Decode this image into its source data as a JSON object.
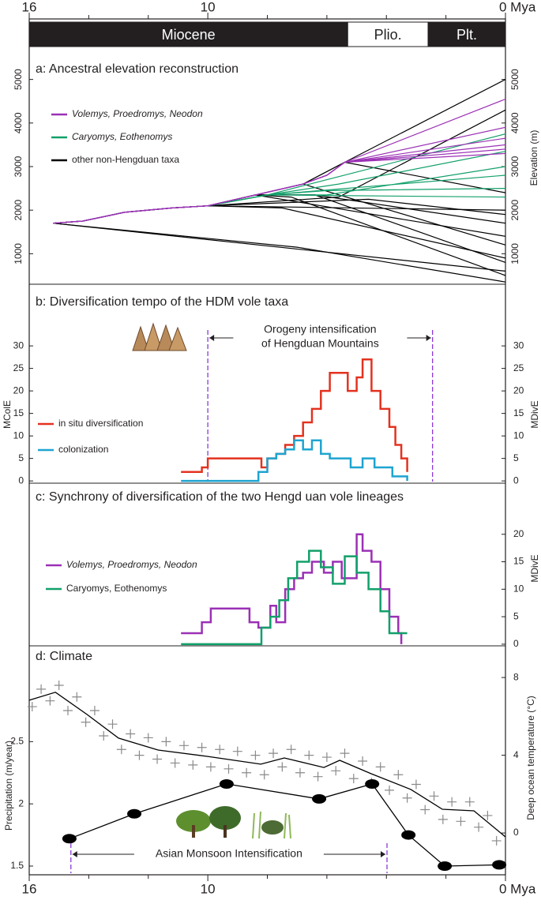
{
  "chart_data": [
    {
      "type": "timeline",
      "xlim": [
        16,
        0
      ],
      "xticks": [
        16,
        10,
        {
          "value": 0,
          "label": "0 Mya"
        }
      ],
      "xminorticks": [
        14,
        12,
        8,
        6,
        4,
        2
      ],
      "epochs": [
        {
          "name": "Miocene",
          "start": 16,
          "end": 5.3,
          "color": "#231f20",
          "text_color": "#ffffff"
        },
        {
          "name": "Plio.",
          "start": 5.3,
          "end": 2.6,
          "color": "#ffffff",
          "text_color": "#231f20"
        },
        {
          "name": "Plt.",
          "start": 2.6,
          "end": 0,
          "color": "#231f20",
          "text_color": "#ffffff"
        }
      ]
    },
    {
      "type": "line",
      "title": "a: Ancestral elevation reconstruction",
      "y2label": "Elevation (m)",
      "xlim": [
        16,
        0
      ],
      "ylim": [
        300,
        5700
      ],
      "yticks": [
        1000,
        2000,
        3000,
        4000,
        5000
      ],
      "series": [
        {
          "name": "Volemys, Proedromys, Neodon",
          "color": "#9b30b5",
          "italic": true
        },
        {
          "name": "Caryomys, Eothenomys",
          "color": "#12a06a",
          "italic": true
        },
        {
          "name": "other non-Hengduan taxa",
          "color": "#000000",
          "italic": false
        }
      ],
      "lines": [
        {
          "series": 2,
          "x": [
            15.2,
            0
          ],
          "values": [
            1700,
            600
          ]
        },
        {
          "series": 2,
          "x": [
            15.2,
            7,
            0
          ],
          "values": [
            1700,
            1150,
            350
          ]
        },
        {
          "series": 2,
          "x": [
            15.2,
            14.2,
            12.8,
            11.2,
            10,
            0
          ],
          "values": [
            1700,
            1750,
            1950,
            2050,
            2100,
            2000
          ]
        },
        {
          "series": 2,
          "x": [
            15.2,
            14.2,
            12.8,
            11.2,
            10,
            8.4,
            0
          ],
          "values": [
            1700,
            1750,
            1950,
            2050,
            2100,
            2350,
            1400
          ]
        },
        {
          "series": 2,
          "x": [
            15.2,
            14.2,
            12.8,
            11.2,
            10,
            8.4,
            6.4,
            0
          ],
          "values": [
            1700,
            1750,
            1950,
            2050,
            2100,
            2350,
            2350,
            800
          ]
        },
        {
          "series": 2,
          "x": [
            15.2,
            14.2,
            12.8,
            11.2,
            10,
            8.4,
            6.4,
            0
          ],
          "values": [
            1700,
            1750,
            1950,
            2050,
            2100,
            2350,
            2350,
            1700
          ]
        },
        {
          "series": 2,
          "x": [
            15.2,
            14.2,
            12.8,
            11.2,
            10,
            8.4,
            6.8,
            5.4,
            0
          ],
          "values": [
            1700,
            1750,
            1950,
            2050,
            2100,
            2350,
            2600,
            3100,
            5000
          ]
        },
        {
          "series": 2,
          "x": [
            15.2,
            14.2,
            12.8,
            11.2,
            10,
            8.4,
            6.8,
            5.4,
            0
          ],
          "values": [
            1700,
            1750,
            1950,
            2050,
            2100,
            2350,
            2600,
            3100,
            2400
          ]
        },
        {
          "series": 2,
          "x": [
            15.2,
            14.2,
            12.8,
            11.2,
            10,
            8.4,
            6.8,
            0
          ],
          "values": [
            1700,
            1750,
            1950,
            2050,
            2100,
            2350,
            2600,
            1200
          ]
        },
        {
          "series": 2,
          "x": [
            15.2,
            14.2,
            12.8,
            11.2,
            10,
            8.4,
            7.2,
            0
          ],
          "values": [
            1700,
            1750,
            1950,
            2050,
            2100,
            2350,
            2300,
            500
          ]
        },
        {
          "series": 2,
          "x": [
            15.2,
            14.2,
            12.8,
            11.2,
            10,
            7.5,
            0
          ],
          "values": [
            1700,
            1750,
            1950,
            2050,
            2100,
            2050,
            900
          ]
        },
        {
          "series": 2,
          "x": [
            15.2,
            14.2,
            12.8,
            11.2,
            10,
            5.6,
            0
          ],
          "values": [
            1700,
            1750,
            1950,
            2050,
            2100,
            2300,
            4300
          ]
        },
        {
          "series": 2,
          "x": [
            15.2,
            14.2,
            12.8,
            11.2,
            10,
            4.6,
            0
          ],
          "values": [
            1700,
            1750,
            1950,
            2050,
            2100,
            2250,
            1900
          ]
        },
        {
          "series": 0,
          "x": [
            15.2,
            14.2,
            12.8,
            11.2,
            10,
            8.4,
            6.8,
            6.0,
            5.4,
            0
          ],
          "values": [
            1700,
            1750,
            1950,
            2050,
            2100,
            2350,
            2600,
            2800,
            3100,
            4550
          ]
        },
        {
          "series": 0,
          "x": [
            15.2,
            14.2,
            12.8,
            11.2,
            10,
            8.4,
            6.8,
            6.0,
            5.4,
            0
          ],
          "values": [
            1700,
            1750,
            1950,
            2050,
            2100,
            2350,
            2600,
            2800,
            3100,
            3900
          ]
        },
        {
          "series": 0,
          "x": [
            15.2,
            14.2,
            12.8,
            11.2,
            10,
            8.4,
            6.8,
            6.0,
            5.4,
            0
          ],
          "values": [
            1700,
            1750,
            1950,
            2050,
            2100,
            2350,
            2600,
            2800,
            3100,
            3650
          ]
        },
        {
          "series": 0,
          "x": [
            15.2,
            14.2,
            12.8,
            11.2,
            10,
            8.4,
            6.8,
            6.0,
            5.4,
            0
          ],
          "values": [
            1700,
            1750,
            1950,
            2050,
            2100,
            2350,
            2600,
            2800,
            3100,
            3500
          ]
        },
        {
          "series": 0,
          "x": [
            15.2,
            14.2,
            12.8,
            11.2,
            10,
            8.4,
            6.8,
            6.0,
            5.4,
            0
          ],
          "values": [
            1700,
            1750,
            1950,
            2050,
            2100,
            2350,
            2600,
            2800,
            3100,
            3400
          ]
        },
        {
          "series": 0,
          "x": [
            15.2,
            14.2,
            12.8,
            11.2,
            10,
            8.4,
            6.8,
            6.0,
            5.4,
            0
          ],
          "values": [
            1700,
            1750,
            1950,
            2050,
            2100,
            2350,
            2600,
            2800,
            3100,
            3300
          ]
        },
        {
          "series": 1,
          "x": [
            15.2,
            14.2,
            12.8,
            11.2,
            10,
            8.0,
            0
          ],
          "values": [
            1700,
            1750,
            1950,
            2050,
            2100,
            2350,
            3750
          ]
        },
        {
          "series": 1,
          "x": [
            15.2,
            14.2,
            12.8,
            11.2,
            10,
            8.0,
            5.6,
            0
          ],
          "values": [
            1700,
            1750,
            1950,
            2050,
            2100,
            2350,
            2600,
            3350
          ]
        },
        {
          "series": 1,
          "x": [
            15.2,
            14.2,
            12.8,
            11.2,
            10,
            8.0,
            6.0,
            0
          ],
          "values": [
            1700,
            1750,
            1950,
            2050,
            2100,
            2350,
            2350,
            3000
          ]
        },
        {
          "series": 1,
          "x": [
            15.2,
            14.2,
            12.8,
            11.2,
            10,
            8.0,
            0
          ],
          "values": [
            1700,
            1750,
            1950,
            2050,
            2100,
            2350,
            2800
          ]
        },
        {
          "series": 1,
          "x": [
            15.2,
            14.2,
            12.8,
            11.2,
            10,
            8.0,
            6.0,
            0
          ],
          "values": [
            1700,
            1750,
            1950,
            2050,
            2100,
            2350,
            2450,
            2500
          ]
        },
        {
          "series": 1,
          "x": [
            15.2,
            14.2,
            12.8,
            11.2,
            10,
            8.0,
            0
          ],
          "values": [
            1700,
            1750,
            1950,
            2050,
            2100,
            2350,
            2300
          ]
        }
      ]
    },
    {
      "type": "step",
      "title": "b: Diversification tempo of the HDM vole taxa",
      "ylabel": "MColE",
      "y2label": "MDivE",
      "xlim": [
        16,
        0
      ],
      "ylim": [
        -0.5,
        43.7
      ],
      "yticks": [
        0,
        5,
        10,
        15,
        20,
        25,
        30
      ],
      "ytick_side": "both",
      "annotation": {
        "lines": [
          "Orogeny intensification",
          "of Hengduan Mountains"
        ],
        "span": [
          10,
          2.45
        ],
        "color": "#8a3ad6"
      },
      "series": [
        {
          "name": "in situ diversification",
          "color": "#e3321f",
          "x": [
            10.9,
            10.2,
            10,
            8.4,
            8.2,
            8,
            7.7,
            7.4,
            7.1,
            6.8,
            6.5,
            6.2,
            5.9,
            5.6,
            5.3,
            5.0,
            4.8,
            4.5,
            4.2,
            3.9,
            3.7,
            3.5,
            3.3
          ],
          "values": [
            2,
            3,
            5,
            5,
            3,
            5,
            6,
            8,
            10,
            13,
            16,
            20,
            24,
            24,
            20,
            23,
            27,
            20,
            16,
            12,
            8,
            5,
            2
          ]
        },
        {
          "name": "colonization",
          "color": "#1ea4d0",
          "x": [
            10.9,
            8.3,
            8.0,
            7.7,
            7.4,
            7.1,
            6.8,
            6.5,
            6.2,
            5.9,
            5.6,
            5.2,
            4.8,
            4.4,
            3.8,
            3.3
          ],
          "values": [
            0,
            2,
            5,
            6,
            7,
            9,
            7,
            9,
            6,
            5,
            5,
            3,
            5,
            3,
            1,
            0
          ]
        }
      ]
    },
    {
      "type": "step",
      "title": "c: Synchrony of diversification of the two Hengd uan vole lineages",
      "y2label": "MDivE",
      "xlim": [
        16,
        0
      ],
      "ylim": [
        -0.3,
        29.3
      ],
      "yticks": [
        0,
        5,
        10,
        15,
        20
      ],
      "ytick_side": "right",
      "series": [
        {
          "name": "Volemys, Proedromys, Neodon",
          "color": "#9b30b5",
          "italic": true,
          "x": [
            10.9,
            10.2,
            9.9,
            8.6,
            8.3,
            7.9,
            7.7,
            7.4,
            7.1,
            6.8,
            6.5,
            6.1,
            5.8,
            5.5,
            5.0,
            4.8,
            4.5,
            4.2,
            3.9,
            3.6,
            3.5
          ],
          "values": [
            2,
            4,
            6.5,
            4,
            3,
            7,
            4,
            10,
            12,
            13,
            15,
            13,
            15,
            12,
            20,
            17,
            15,
            10,
            5,
            2,
            0
          ]
        },
        {
          "name": "Caryomys, Eothenomys",
          "color": "#12a06a",
          "x": [
            10.9,
            8.2,
            7.9,
            7.6,
            7.3,
            7.0,
            6.6,
            6.2,
            5.8,
            5.4,
            5.0,
            4.6,
            4.2,
            3.9,
            3.6,
            3.3
          ],
          "values": [
            0,
            3,
            5,
            8,
            12,
            15,
            17,
            14,
            11,
            16,
            13,
            10,
            6,
            2,
            2,
            2
          ]
        }
      ]
    },
    {
      "type": "climate",
      "title": "d: Climate",
      "ylabel": "Precipitation (m/year)",
      "y2label": "Deep ocean temperature (°C)",
      "xlim": [
        16,
        0
      ],
      "ylim": [
        1.43,
        3.27
      ],
      "yticks": [
        1.5,
        2.0,
        2.5
      ],
      "y2lim": [
        -2.15,
        9.63
      ],
      "y2ticks": [
        0,
        4,
        8
      ],
      "annotation": {
        "lines": [
          "Asian Monsoon Intensification"
        ],
        "span": [
          14.6,
          3.98
        ],
        "color": "#8a3ad6"
      },
      "precipitation": {
        "color": "#000000",
        "x": [
          14.65,
          12.47,
          9.37,
          6.26,
          4.48,
          3.26,
          2.04,
          0.21
        ],
        "values": [
          1.72,
          1.92,
          2.16,
          2.04,
          2.16,
          1.75,
          1.5,
          1.51
        ]
      },
      "temperature": {
        "axis": "y2",
        "color": "#000000",
        "x": [
          16,
          15.12,
          14.06,
          13.0,
          11.67,
          10,
          8.22,
          7.43,
          6.1,
          5.57,
          4.51,
          3.18,
          2.12,
          1.06,
          0
        ],
        "values": [
          6.83,
          7.24,
          6.1,
          4.88,
          4.27,
          3.94,
          3.54,
          3.86,
          3.37,
          3.74,
          3.05,
          2.24,
          1.22,
          1.14,
          -0.2
        ]
      },
      "temperature_points": {
        "axis": "y2",
        "color": "#8a8a8a",
        "x": [
          15.9,
          15.6,
          15.3,
          15.0,
          14.7,
          14.4,
          14.1,
          13.8,
          13.5,
          13.2,
          12.9,
          12.6,
          12.3,
          12.0,
          11.7,
          11.4,
          11.1,
          10.8,
          10.5,
          10.2,
          9.9,
          9.6,
          9.3,
          9.0,
          8.7,
          8.4,
          8.1,
          7.8,
          7.5,
          7.2,
          6.9,
          6.6,
          6.3,
          6.0,
          5.7,
          5.4,
          5.1,
          4.8,
          4.5,
          4.2,
          3.9,
          3.6,
          3.3,
          3.0,
          2.7,
          2.4,
          2.1,
          1.8,
          1.5,
          1.2,
          0.9,
          0.6,
          0.3
        ],
        "values": [
          6.5,
          7.4,
          6.8,
          7.6,
          6.3,
          7.0,
          5.7,
          6.3,
          5.0,
          5.6,
          4.3,
          5.1,
          4.0,
          4.9,
          3.8,
          4.7,
          3.6,
          4.5,
          3.5,
          4.4,
          3.4,
          4.3,
          3.3,
          4.2,
          3.1,
          4.0,
          3.0,
          4.1,
          3.4,
          4.3,
          3.1,
          4.0,
          2.9,
          3.9,
          3.2,
          4.1,
          2.8,
          3.7,
          2.6,
          3.4,
          2.2,
          3.0,
          1.8,
          2.5,
          1.2,
          1.9,
          0.7,
          1.6,
          0.6,
          1.6,
          0.3,
          0.9,
          -0.4
        ]
      }
    }
  ]
}
